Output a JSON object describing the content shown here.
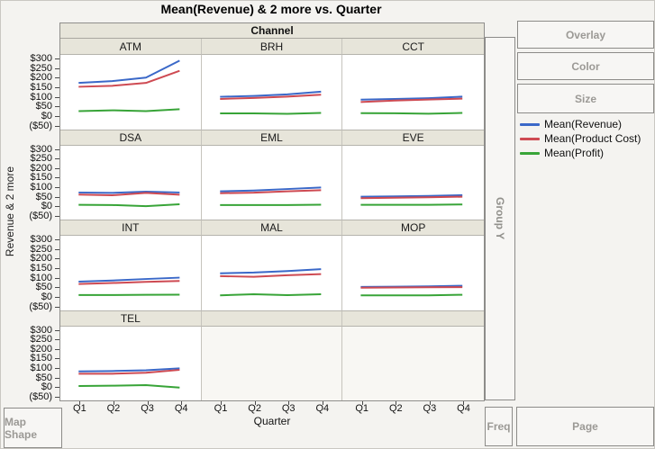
{
  "title": "Mean(Revenue) & 2 more vs. Quarter",
  "chart_data": {
    "type": "line",
    "title": "Mean(Revenue) & 2 more vs. Quarter",
    "facet_column_header": "Channel",
    "grid_layout": [
      [
        "ATM",
        "BRH",
        "CCT"
      ],
      [
        "DSA",
        "EML",
        "EVE"
      ],
      [
        "INT",
        "MAL",
        "MOP"
      ],
      [
        "TEL",
        null,
        null
      ]
    ],
    "x_categories": [
      "Q1",
      "Q2",
      "Q3",
      "Q4"
    ],
    "xlabel": "Quarter",
    "ylabel": "Revenue & 2 more",
    "ylim": [
      -50,
      300
    ],
    "ytick_labels": [
      "$300",
      "$250",
      "$200",
      "$150",
      "$100",
      "$50",
      "$0",
      "($50)"
    ],
    "grid": "off",
    "legend_position": "right",
    "series": [
      {
        "name": "Mean(Revenue)",
        "color": "#3A68C8"
      },
      {
        "name": "Mean(Product Cost)",
        "color": "#CE4A52"
      },
      {
        "name": "Mean(Profit)",
        "color": "#38A438"
      }
    ],
    "panels": [
      {
        "channel": "ATM",
        "values": {
          "Mean(Revenue)": [
            168,
            178,
            196,
            285
          ],
          "Mean(Product Cost)": [
            148,
            153,
            168,
            232
          ],
          "Mean(Profit)": [
            20,
            24,
            20,
            30
          ]
        }
      },
      {
        "channel": "BRH",
        "values": {
          "Mean(Revenue)": [
            95,
            100,
            108,
            122
          ],
          "Mean(Product Cost)": [
            84,
            89,
            96,
            106
          ],
          "Mean(Profit)": [
            8,
            8,
            6,
            10
          ]
        }
      },
      {
        "channel": "CCT",
        "values": {
          "Mean(Revenue)": [
            80,
            84,
            88,
            96
          ],
          "Mean(Product Cost)": [
            68,
            76,
            81,
            86
          ],
          "Mean(Profit)": [
            10,
            9,
            7,
            11
          ]
        }
      },
      {
        "channel": "DSA",
        "values": {
          "Mean(Revenue)": [
            70,
            68,
            74,
            70
          ],
          "Mean(Product Cost)": [
            59,
            55,
            68,
            58
          ],
          "Mean(Profit)": [
            5,
            4,
            -2,
            8
          ]
        }
      },
      {
        "channel": "EML",
        "values": {
          "Mean(Revenue)": [
            76,
            80,
            88,
            96
          ],
          "Mean(Product Cost)": [
            66,
            69,
            76,
            82
          ],
          "Mean(Profit)": [
            4,
            4,
            4,
            6
          ]
        }
      },
      {
        "channel": "EVE",
        "values": {
          "Mean(Revenue)": [
            48,
            50,
            52,
            56
          ],
          "Mean(Product Cost)": [
            40,
            43,
            45,
            48
          ],
          "Mean(Profit)": [
            6,
            6,
            6,
            8
          ]
        }
      },
      {
        "channel": "INT",
        "values": {
          "Mean(Revenue)": [
            74,
            80,
            88,
            95
          ],
          "Mean(Product Cost)": [
            62,
            67,
            73,
            78
          ],
          "Mean(Profit)": [
            4,
            4,
            5,
            6
          ]
        }
      },
      {
        "channel": "MAL",
        "values": {
          "Mean(Revenue)": [
            118,
            122,
            130,
            140
          ],
          "Mean(Product Cost)": [
            103,
            100,
            108,
            114
          ],
          "Mean(Profit)": [
            2,
            8,
            3,
            8
          ]
        }
      },
      {
        "channel": "MOP",
        "values": {
          "Mean(Revenue)": [
            47,
            48,
            50,
            53
          ],
          "Mean(Product Cost)": [
            43,
            44,
            45,
            46
          ],
          "Mean(Profit)": [
            3,
            3,
            3,
            6
          ]
        }
      },
      {
        "channel": "TEL",
        "values": {
          "Mean(Revenue)": [
            80,
            82,
            86,
            96
          ],
          "Mean(Product Cost)": [
            68,
            68,
            73,
            88
          ],
          "Mean(Profit)": [
            3,
            5,
            8,
            -5
          ]
        }
      }
    ]
  },
  "legend": {
    "items": [
      {
        "label": "Mean(Revenue)",
        "color": "#3A68C8"
      },
      {
        "label": "Mean(Product Cost)",
        "color": "#CE4A52"
      },
      {
        "label": "Mean(Profit)",
        "color": "#38A438"
      }
    ]
  },
  "drop_zones": {
    "overlay": "Overlay",
    "color": "Color",
    "size": "Size",
    "group_y": "Group Y",
    "freq": "Freq",
    "page": "Page",
    "map_shape": "Map Shape"
  }
}
